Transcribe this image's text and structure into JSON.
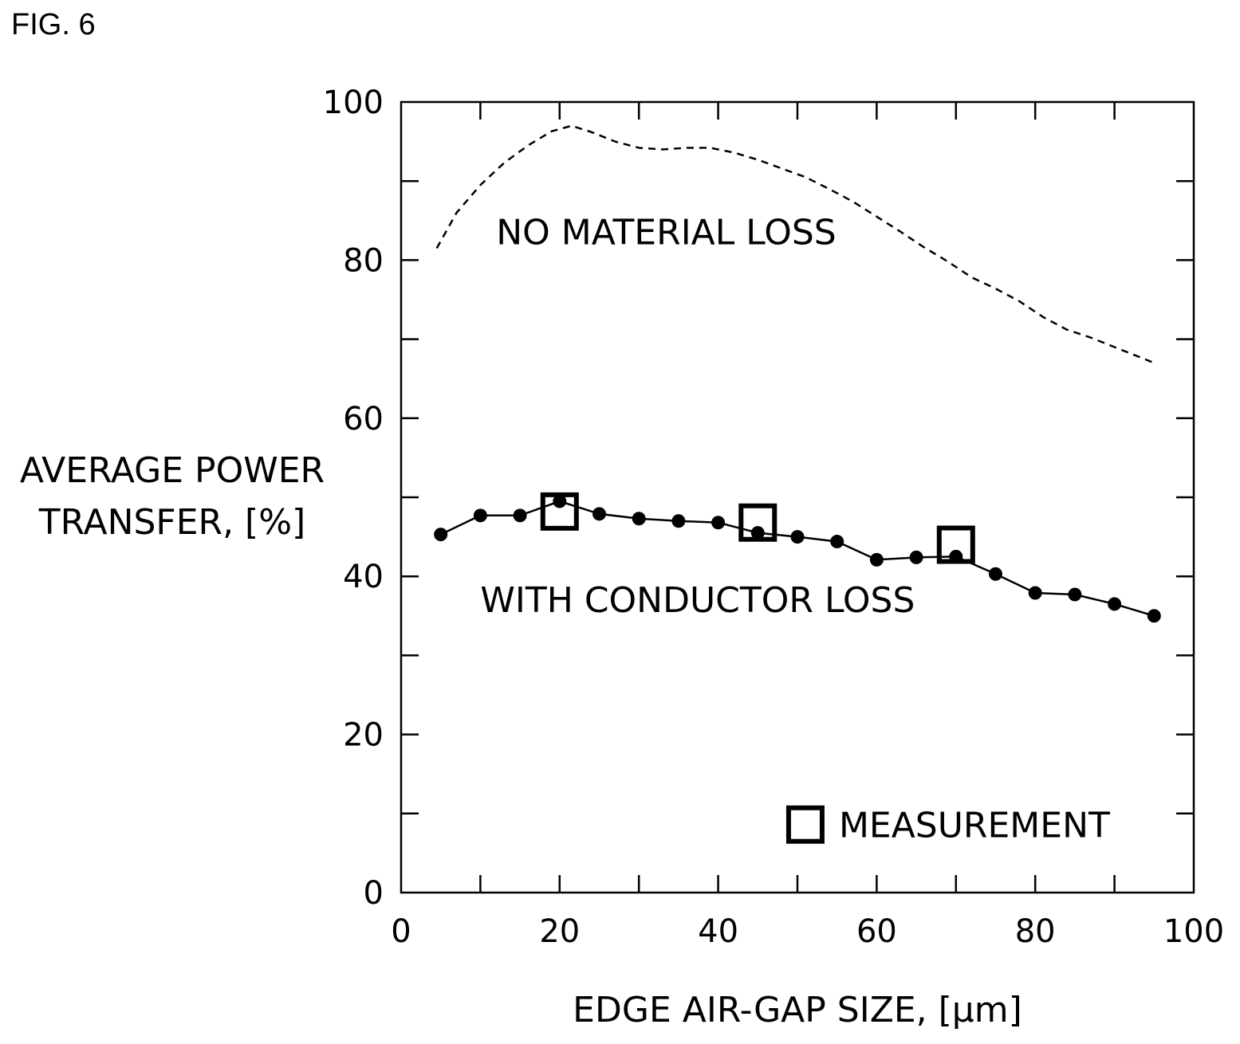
{
  "figure_label": "FIG. 6",
  "chart_data": {
    "type": "line",
    "xlabel": "EDGE AIR-GAP SIZE, [µm]",
    "ylabel_lines": [
      "AVERAGE POWER",
      "TRANSFER, [%]"
    ],
    "xlim": [
      0,
      100
    ],
    "ylim": [
      0,
      100
    ],
    "xticks": [
      0,
      20,
      40,
      60,
      80,
      100
    ],
    "yticks": [
      0,
      20,
      40,
      60,
      80,
      100
    ],
    "x_minor_step": 10,
    "y_minor_step": 10,
    "grid": false,
    "series": [
      {
        "name": "NO MATERIAL LOSS",
        "style": "dashed",
        "marker": "none",
        "color": "#000000",
        "x": [
          4.5,
          7,
          10,
          13,
          16,
          19,
          21.5,
          24,
          27,
          30,
          33,
          36,
          39,
          42,
          45,
          48,
          51,
          54,
          57,
          60,
          63,
          66,
          69,
          72,
          75,
          78,
          81,
          84,
          87,
          90,
          93,
          95
        ],
        "y": [
          81.5,
          86,
          89.5,
          92.3,
          94.5,
          96.3,
          97,
          96.2,
          95,
          94.2,
          94,
          94.2,
          94.2,
          93.6,
          92.7,
          91.6,
          90.5,
          89,
          87.4,
          85.5,
          83.6,
          81.6,
          79.8,
          77.8,
          76.4,
          74.8,
          72.8,
          71.2,
          70.2,
          69,
          67.8,
          67
        ]
      },
      {
        "name": "WITH CONDUCTOR LOSS",
        "style": "solid",
        "marker": "filled-circle",
        "color": "#000000",
        "x": [
          5,
          10,
          15,
          20,
          25,
          30,
          35,
          40,
          45,
          50,
          55,
          60,
          65,
          70,
          75,
          80,
          85,
          90,
          95
        ],
        "y": [
          45.3,
          47.7,
          47.7,
          49.5,
          47.9,
          47.3,
          47.0,
          46.8,
          45.5,
          45.0,
          44.4,
          42.1,
          42.4,
          42.5,
          40.3,
          37.9,
          37.7,
          36.5,
          35.0
        ]
      },
      {
        "name": "MEASUREMENT",
        "style": "none",
        "marker": "open-square",
        "color": "#000000",
        "x": [
          20,
          45,
          70
        ],
        "y": [
          48.2,
          46.8,
          44.0
        ]
      }
    ],
    "annotations": [
      {
        "text": "NO MATERIAL LOSS",
        "x": 12,
        "y": 82
      },
      {
        "text": "WITH CONDUCTOR LOSS",
        "x": 10,
        "y": 35.5
      }
    ],
    "legend": {
      "position": "bottom-right",
      "entries": [
        "MEASUREMENT"
      ]
    }
  }
}
